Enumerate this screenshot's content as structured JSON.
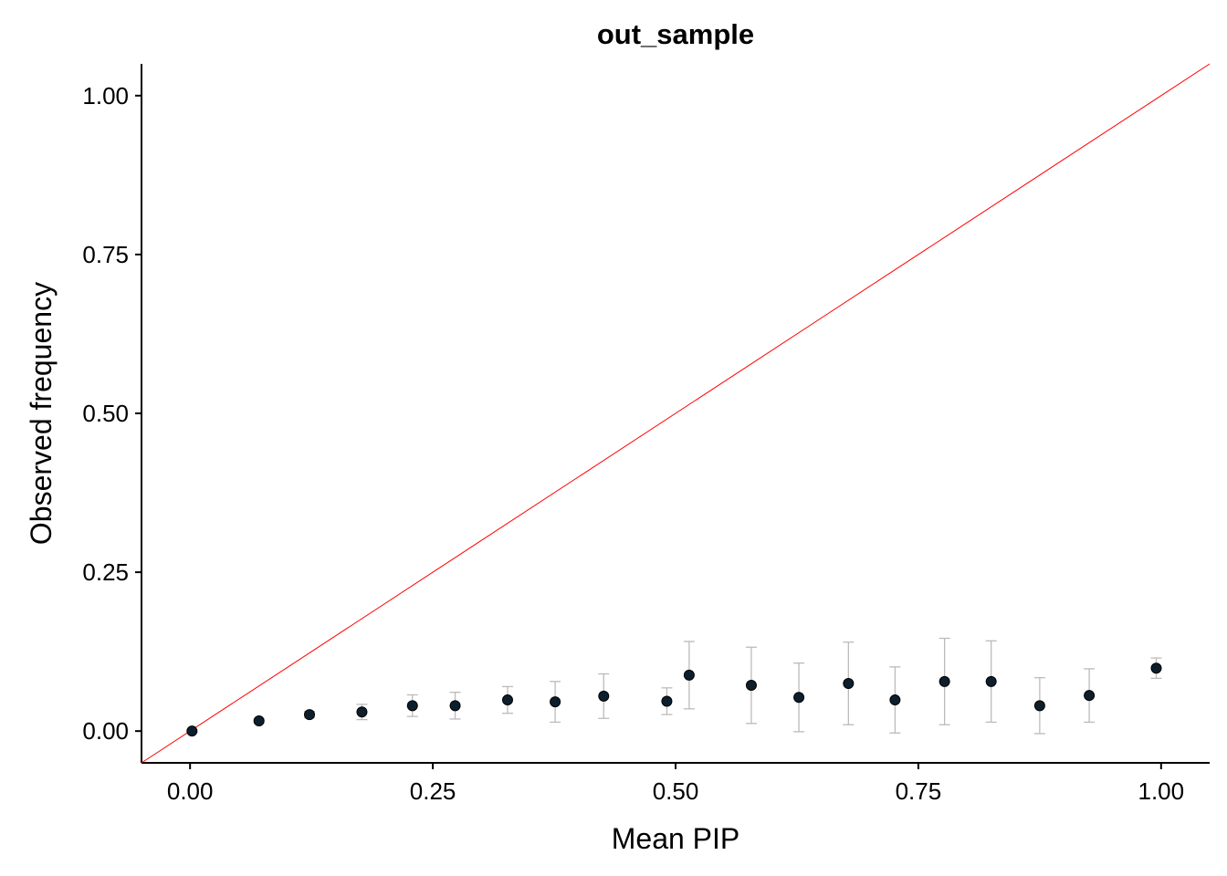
{
  "chart_data": {
    "type": "scatter",
    "title": "out_sample",
    "x_label": "Mean PIP",
    "y_label": "Observed frequency",
    "x": [
      0.002,
      0.071,
      0.123,
      0.177,
      0.229,
      0.273,
      0.327,
      0.376,
      0.426,
      0.491,
      0.514,
      0.578,
      0.627,
      0.678,
      0.726,
      0.777,
      0.825,
      0.875,
      0.926,
      0.995
    ],
    "y": [
      0.0,
      0.016,
      0.026,
      0.03,
      0.04,
      0.04,
      0.049,
      0.046,
      0.055,
      0.047,
      0.088,
      0.072,
      0.053,
      0.075,
      0.049,
      0.078,
      0.078,
      0.04,
      0.056,
      0.099
    ],
    "errors": [
      0.002,
      0.003,
      0.005,
      0.012,
      0.017,
      0.021,
      0.021,
      0.032,
      0.035,
      0.021,
      0.053,
      0.06,
      0.054,
      0.065,
      0.052,
      0.068,
      0.064,
      0.044,
      0.042,
      0.016
    ],
    "color": "#0d1f2d",
    "error_color": "#bbbbbb",
    "reference_line": {
      "slope": 1,
      "intercept": 0,
      "color": "#ff0000"
    },
    "xlim": [
      -0.05,
      1.05
    ],
    "ylim": [
      -0.05,
      1.05
    ],
    "xticks": [
      {
        "value": 0,
        "label": "0.00"
      },
      0.25,
      {
        "value": 0.5,
        "label": "0.50"
      },
      0.75,
      {
        "value": 1,
        "label": "1.00"
      }
    ],
    "yticks": [
      {
        "value": 0,
        "label": "0.00"
      },
      0.25,
      {
        "value": 0.5,
        "label": "0.50"
      },
      0.75,
      {
        "value": 1,
        "label": "1.00"
      }
    ],
    "grid": false
  }
}
